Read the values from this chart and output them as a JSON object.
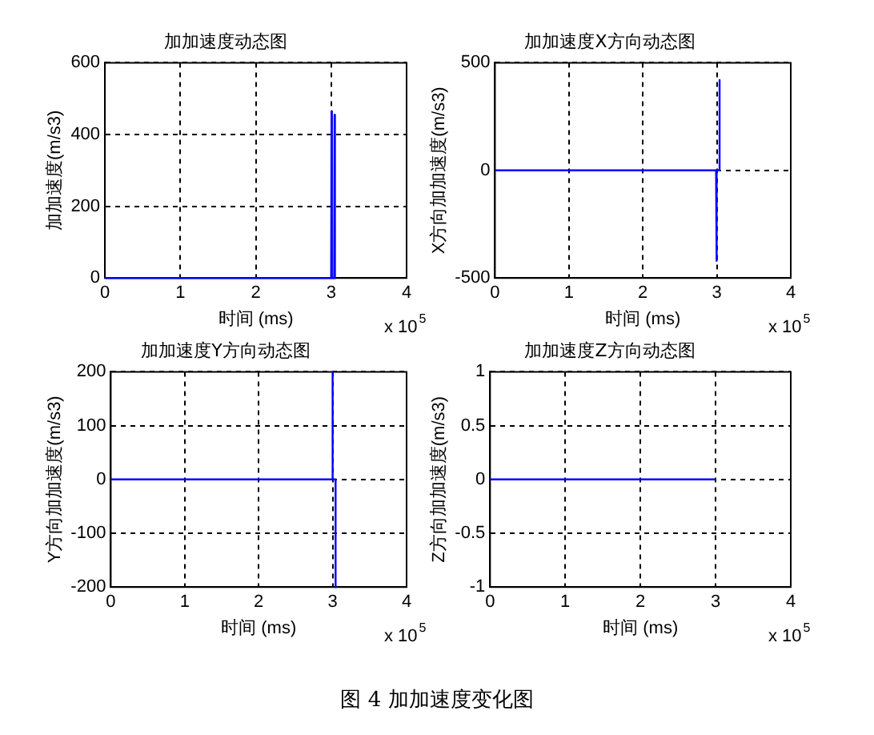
{
  "chart_data": [
    {
      "type": "line",
      "title": "加加速度动态图",
      "xlabel": "时间 (ms)",
      "ylabel": "加加速度(m/s3)",
      "x": [
        0,
        3,
        3.005,
        3.01,
        3.04,
        3.045,
        3.05
      ],
      "series": [
        {
          "color": "#0000ff",
          "values": [
            0,
            0,
            465,
            0,
            0,
            455,
            0
          ]
        }
      ],
      "xlim": [
        0,
        4
      ],
      "xticks": [
        0,
        1,
        2,
        3,
        4
      ],
      "ylim": [
        0,
        600
      ],
      "yticks": [
        0,
        200,
        400,
        600
      ],
      "grid": true,
      "annotations": [
        "x 10$^{5}$"
      ]
    },
    {
      "type": "line",
      "title": "加加速度X方向动态图",
      "xlabel": "时间 (ms)",
      "ylabel": "X方向加加速度(m/s3)",
      "x": [
        0,
        2.99,
        2.995,
        3,
        3.03,
        3.035,
        3.04
      ],
      "series": [
        {
          "color": "#0000ff",
          "values": [
            0,
            0,
            -420,
            0,
            0,
            420,
            0
          ]
        }
      ],
      "xlim": [
        0,
        4
      ],
      "xticks": [
        0,
        1,
        2,
        3,
        4
      ],
      "ylim": [
        -500,
        500
      ],
      "yticks": [
        -500,
        0,
        500
      ],
      "grid": true,
      "annotations": [
        "x 10$^{5}$"
      ]
    },
    {
      "type": "line",
      "title": "加加速度Y方向动态图",
      "xlabel": "时间 (ms)",
      "ylabel": "Y方向加加速度(m/s3)",
      "x": [
        0,
        3,
        3,
        3,
        3.04,
        3.04
      ],
      "series": [
        {
          "color": "#0000ff",
          "values": [
            0,
            0,
            200,
            0,
            0,
            -200
          ]
        }
      ],
      "xlim": [
        0,
        4
      ],
      "xticks": [
        0,
        1,
        2,
        3,
        4
      ],
      "ylim": [
        -200,
        200
      ],
      "yticks": [
        -200,
        -100,
        0,
        100,
        200
      ],
      "grid": true,
      "annotations": [
        "x 10$^{5}$"
      ]
    },
    {
      "type": "line",
      "title": "加加速度Z方向动态图",
      "xlabel": "时间 (ms)",
      "ylabel": "Z方向加加速度(m/s3)",
      "x": [
        0,
        3
      ],
      "series": [
        {
          "color": "#0000ff",
          "values": [
            0,
            0
          ]
        }
      ],
      "xlim": [
        0,
        4
      ],
      "xticks": [
        0,
        1,
        2,
        3,
        4
      ],
      "ylim": [
        -1,
        1
      ],
      "yticks": [
        -1,
        -0.5,
        0,
        0.5,
        1
      ],
      "grid": true,
      "annotations": [
        "x 10$^{5}$",
        "图 4 加加速度变化图"
      ]
    }
  ]
}
